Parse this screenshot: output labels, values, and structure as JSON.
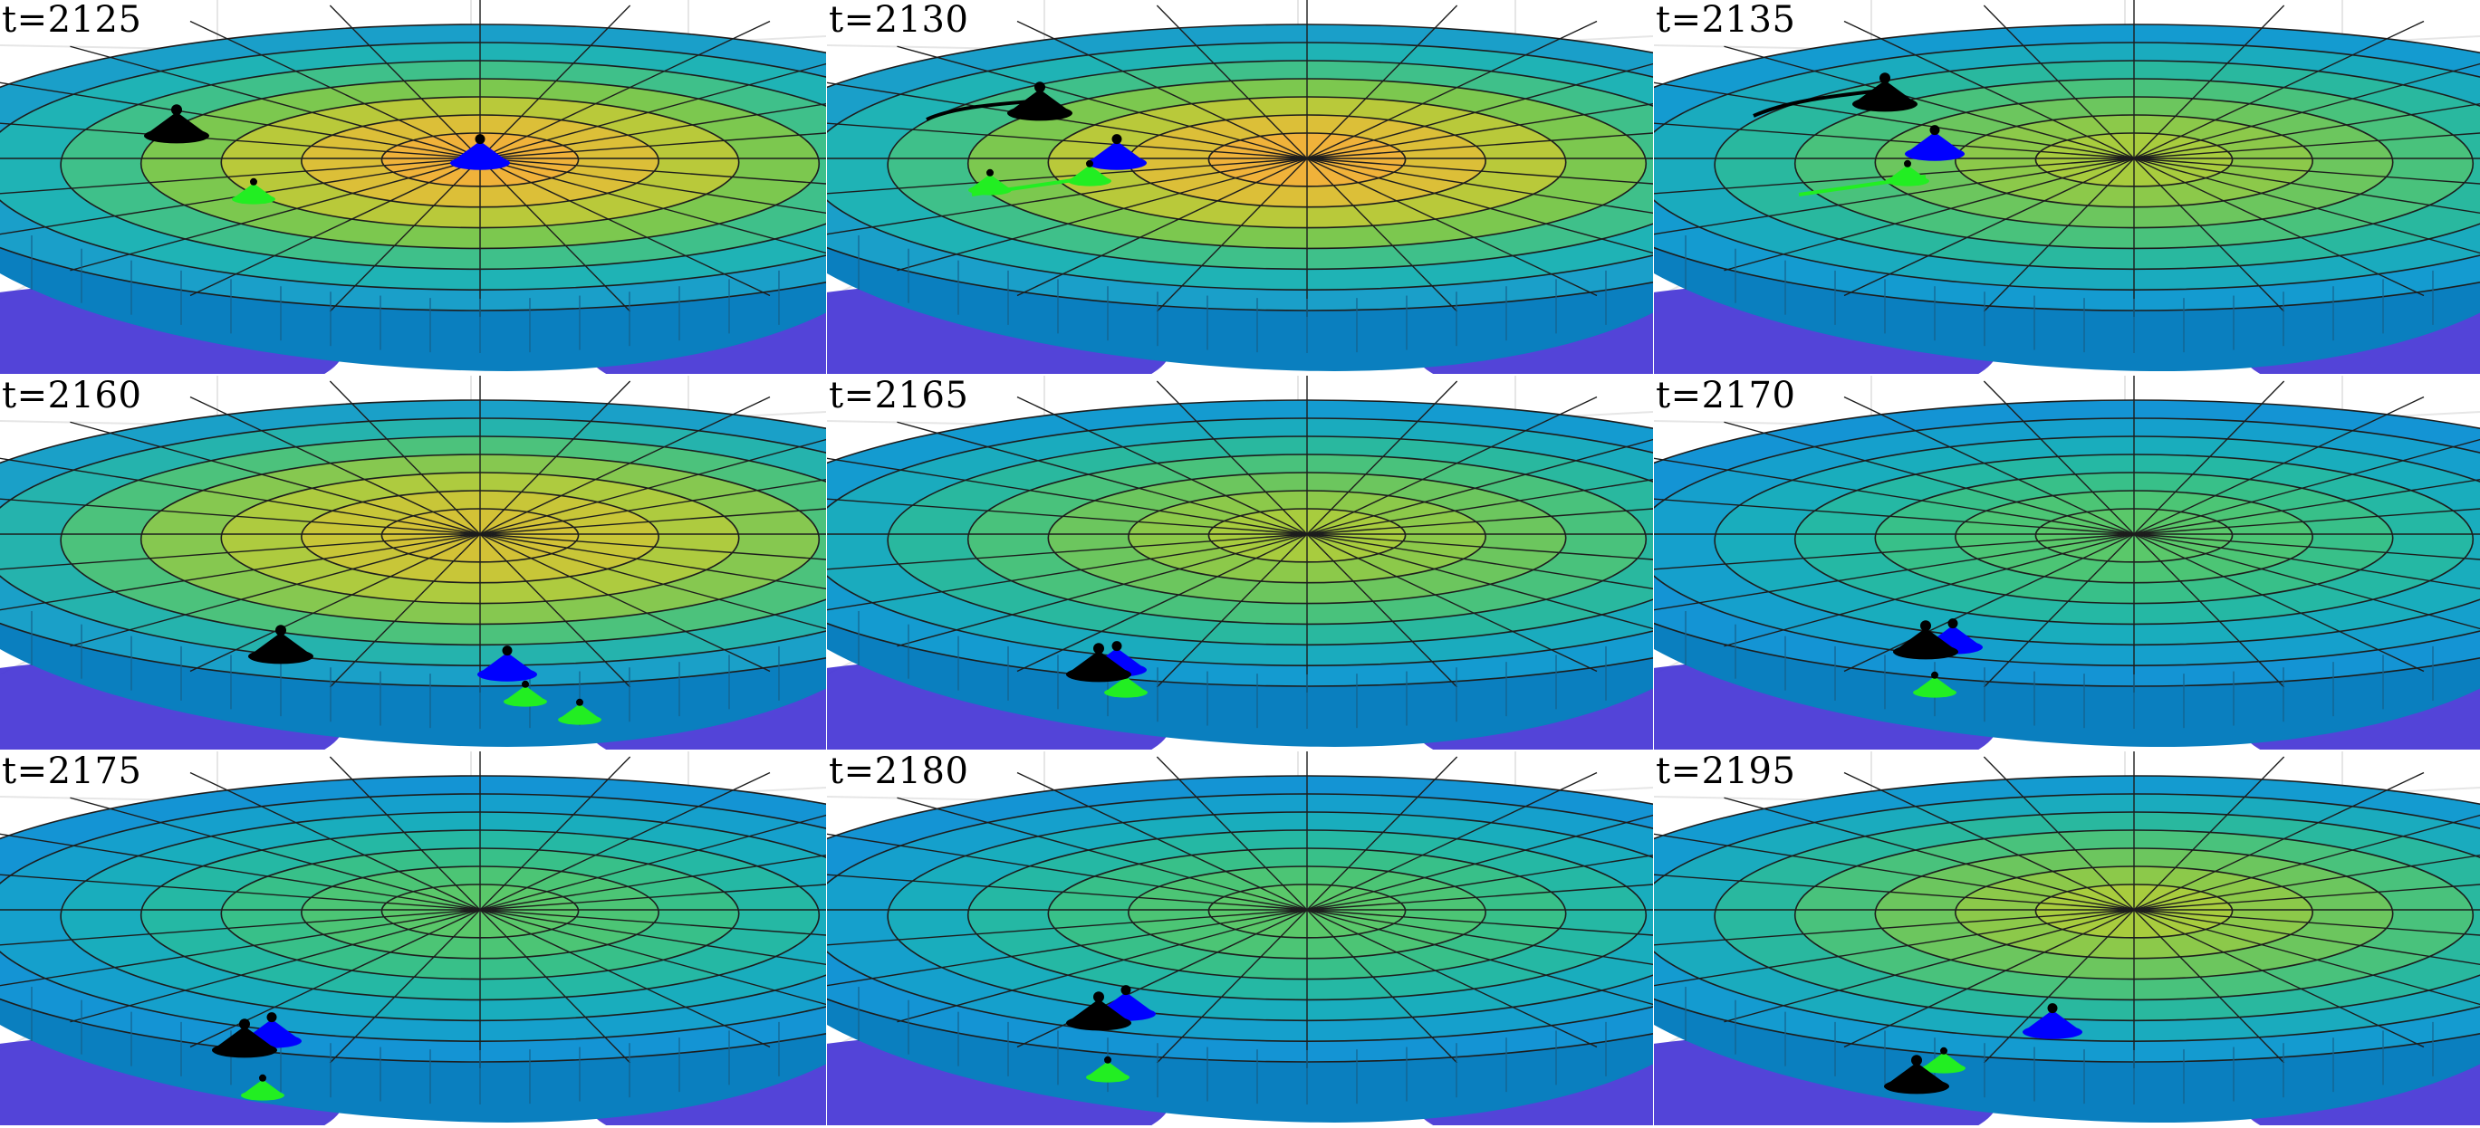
{
  "figure": {
    "panels": [
      {
        "label": "t=2125",
        "surface": "warm",
        "peak_color": "#f4ad3b"
      },
      {
        "label": "t=2130",
        "surface": "warm",
        "peak_color": "#f6ae3a"
      },
      {
        "label": "t=2135",
        "surface": "green",
        "peak_color": "#a9cd3c"
      },
      {
        "label": "t=2160",
        "surface": "olive",
        "peak_color": "#c8c236"
      },
      {
        "label": "t=2165",
        "surface": "green",
        "peak_color": "#8fc83f"
      },
      {
        "label": "t=2170",
        "surface": "teal",
        "peak_color": "#56c667"
      },
      {
        "label": "t=2175",
        "surface": "teal",
        "peak_color": "#4cc46c"
      },
      {
        "label": "t=2180",
        "surface": "teal",
        "peak_color": "#43bd78"
      },
      {
        "label": "t=2195",
        "surface": "green",
        "peak_color": "#7fc94a"
      }
    ],
    "colors": {
      "agent_black": "#000000",
      "agent_blue": "#0000ff",
      "agent_green": "#22ee22",
      "rim_color": "#0a7fbf",
      "base_purple": "#4a3ad6"
    }
  }
}
